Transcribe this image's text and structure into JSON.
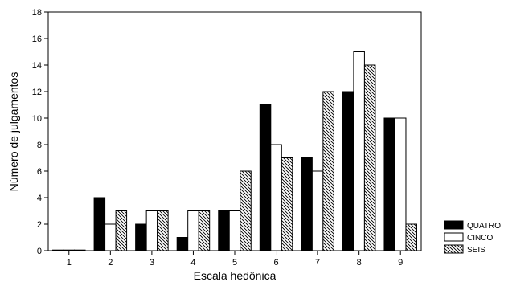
{
  "chart_data": {
    "type": "bar",
    "title": "",
    "xlabel": "Escala hedônica",
    "ylabel": "Número de julgamentos",
    "categories": [
      "1",
      "2",
      "3",
      "4",
      "5",
      "6",
      "7",
      "8",
      "9"
    ],
    "ylim": [
      0,
      18
    ],
    "yticks": [
      0,
      2,
      4,
      6,
      8,
      10,
      12,
      14,
      16,
      18
    ],
    "grid": false,
    "legend_position": "bottom-right",
    "series": [
      {
        "name": "QUATRO",
        "fill": "#000000",
        "pattern": "solid",
        "values": [
          0,
          4,
          2,
          1,
          3,
          11,
          7,
          12,
          10
        ]
      },
      {
        "name": "CINCO",
        "fill": "#ffffff",
        "pattern": "solid",
        "values": [
          0,
          2,
          3,
          3,
          3,
          8,
          6,
          15,
          10
        ]
      },
      {
        "name": "SEIS",
        "fill": "#ffffff",
        "pattern": "diagonal-hatch",
        "values": [
          0,
          3,
          3,
          3,
          6,
          7,
          12,
          14,
          2
        ]
      }
    ]
  }
}
